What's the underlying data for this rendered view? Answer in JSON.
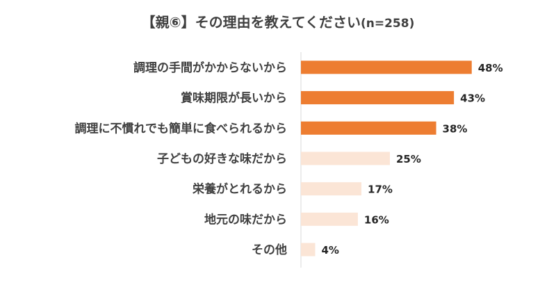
{
  "chart_data": {
    "type": "bar",
    "orientation": "horizontal",
    "title_main": "【親⑥】その理由を教えてください",
    "title_n": "(n=258)",
    "categories": [
      "調理の手間がかからないから",
      "賞味期限が長いから",
      "調理に不慣れでも簡単に食べられるから",
      "子どもの好きな味だから",
      "栄養がとれるから",
      "地元の味だから",
      "その他"
    ],
    "values": [
      48,
      43,
      38,
      25,
      17,
      16,
      4
    ],
    "value_labels": [
      "48%",
      "43%",
      "38%",
      "25%",
      "17%",
      "16%",
      "4%"
    ],
    "unit": "%",
    "xlim": [
      0,
      100
    ],
    "highlight_count": 3,
    "colors": {
      "highlight": "#ED7D31",
      "normal": "#FBE5D6",
      "axis": "#D9D9D9",
      "text": "#404040"
    },
    "grid": false,
    "legend": "none"
  }
}
